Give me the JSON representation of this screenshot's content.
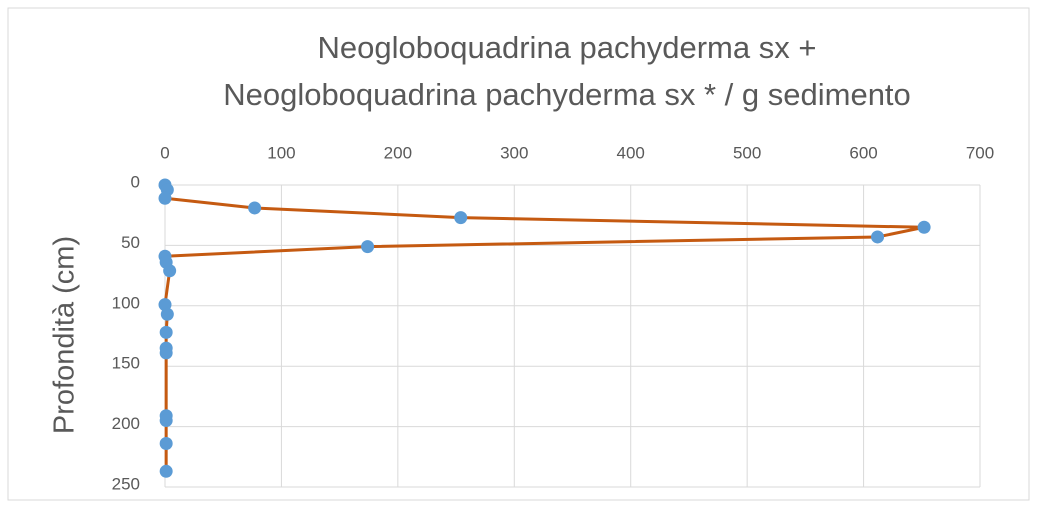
{
  "chart_data": {
    "type": "line",
    "title": [
      "Neogloboquadrina pachyderma sx +",
      "Neogloboquadrina pachyderma sx * / g sedimento"
    ],
    "y_label": "Profondità (cm)",
    "series": [
      {
        "color": "#c55a11",
        "marker_color": "#5b9bd5",
        "x": [
          0,
          2,
          0,
          77,
          254,
          652,
          612,
          174,
          0,
          1,
          4,
          0,
          2,
          1,
          1,
          1,
          1,
          1,
          1,
          1
        ],
        "y": [
          0,
          4,
          11,
          19,
          27,
          35,
          43,
          51,
          59,
          64,
          71,
          99,
          107,
          122,
          135,
          139,
          191,
          195,
          214,
          237
        ]
      }
    ],
    "xlim": [
      0,
      700
    ],
    "xticks": [
      0,
      100,
      200,
      300,
      400,
      500,
      600,
      700
    ],
    "ylim": [
      0,
      250
    ],
    "yticks": [
      0,
      50,
      100,
      150,
      200,
      250
    ],
    "y_inverted": true,
    "x_axis_position": "top",
    "grid": true
  }
}
